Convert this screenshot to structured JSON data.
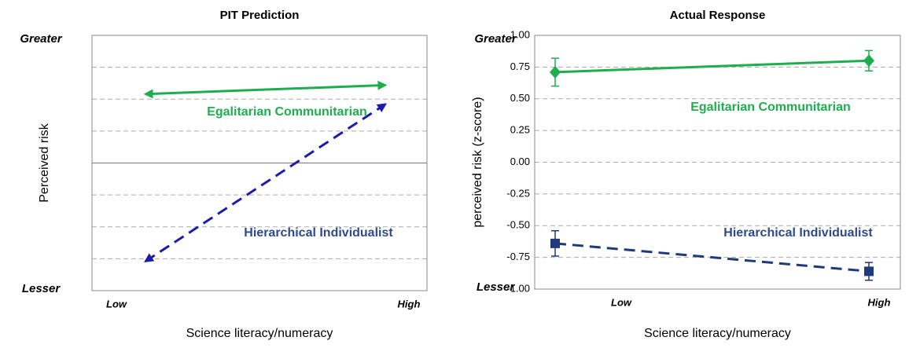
{
  "chart_data": [
    {
      "type": "line",
      "title": "PIT Prediction",
      "y_label": "Perceived risk",
      "x_label": "Science literacy/numeracy",
      "y_end_labels": [
        "Greater",
        "Lesser"
      ],
      "categories": [
        "Low",
        "High"
      ],
      "ylim": [
        -1,
        1
      ],
      "gridlines": [
        -0.75,
        -0.5,
        -0.25,
        0,
        0.25,
        0.5,
        0.75
      ],
      "arrows": true,
      "series": [
        {
          "name": "Egalitarian Communitarian",
          "color": "#1fae4f",
          "values": [
            0.54,
            0.61
          ],
          "dashed": false
        },
        {
          "name": "Hierarchical Individualist",
          "color": "#1c1ca8",
          "values": [
            -0.77,
            0.46
          ],
          "dashed": true
        }
      ]
    },
    {
      "type": "line",
      "title": "Actual Response",
      "y_label": "perceived risk (z-score)",
      "x_label": "Science literacy/numeracy",
      "y_end_labels": [
        "Greater",
        "Lesser"
      ],
      "categories": [
        "Low",
        "High"
      ],
      "ylim": [
        -1,
        1
      ],
      "yticks": [
        {
          "value": 1,
          "label": "1.00"
        },
        {
          "value": 0.75,
          "label": "0.75"
        },
        {
          "value": 0.5,
          "label": "0.50"
        },
        {
          "value": 0.25,
          "label": "0.25"
        },
        {
          "value": 0,
          "label": "0.00"
        },
        {
          "value": -0.25,
          "label": "-0.25"
        },
        {
          "value": -0.5,
          "label": "-0.50"
        },
        {
          "value": -0.75,
          "label": "-0.75"
        },
        {
          "value": -1,
          "label": "-1.00"
        }
      ],
      "series": [
        {
          "name": "Egalitarian Communitarian",
          "color": "#1fae4f",
          "values": [
            0.71,
            0.8
          ],
          "errors": [
            0.11,
            0.08
          ],
          "marker": "diamond",
          "dashed": false
        },
        {
          "name": "Hierarchical Individualist",
          "color": "#1f3a7a",
          "values": [
            -0.64,
            -0.86
          ],
          "errors": [
            0.1,
            0.07
          ],
          "marker": "square",
          "dashed": true
        }
      ]
    }
  ]
}
